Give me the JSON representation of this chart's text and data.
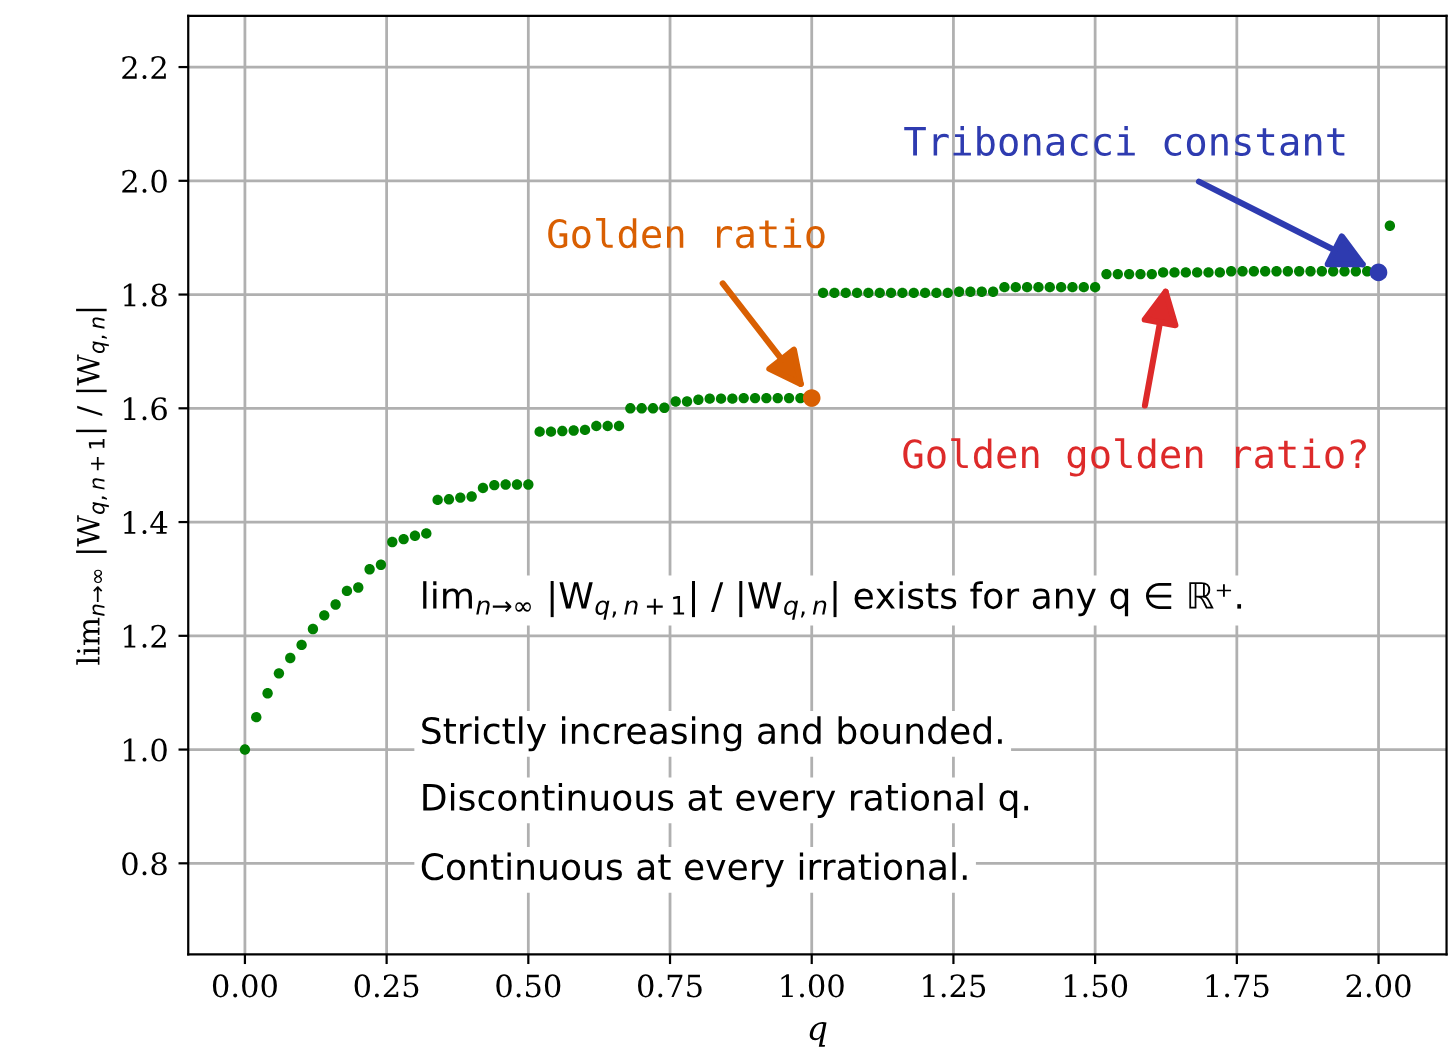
{
  "chart_data": {
    "type": "scatter",
    "xlabel": "q",
    "ylabel": "lim$_{n→∞}$ |W$_{q,n+1}$| / |W$_{q,n}$|",
    "series": [
      {
        "color": "#008000",
        "x": [
          0,
          0.02,
          0.04,
          0.06,
          0.08,
          0.1,
          0.12,
          0.14,
          0.16,
          0.18,
          0.2,
          0.22,
          0.24,
          0.26,
          0.28,
          0.3,
          0.32,
          0.34,
          0.36,
          0.38,
          0.4,
          0.42,
          0.44,
          0.46,
          0.48,
          0.5,
          0.52,
          0.54,
          0.56,
          0.58,
          0.6,
          0.62,
          0.64,
          0.66,
          0.68,
          0.7,
          0.72,
          0.74,
          0.76,
          0.78,
          0.8,
          0.82,
          0.84,
          0.86,
          0.88,
          0.9,
          0.92,
          0.94,
          0.96,
          0.98,
          1.02,
          1.04,
          1.06,
          1.08,
          1.1,
          1.12,
          1.14,
          1.16,
          1.18,
          1.2,
          1.22,
          1.24,
          1.26,
          1.28,
          1.3,
          1.32,
          1.34,
          1.36,
          1.38,
          1.4,
          1.42,
          1.44,
          1.46,
          1.48,
          1.5,
          1.52,
          1.54,
          1.56,
          1.58,
          1.6,
          1.62,
          1.64,
          1.66,
          1.68,
          1.7,
          1.72,
          1.74,
          1.76,
          1.78,
          1.8,
          1.82,
          1.84,
          1.86,
          1.88,
          1.9,
          1.92,
          1.94,
          1.96,
          1.98,
          2.02
        ],
        "values": [
          1.0,
          1.057,
          1.099,
          1.134,
          1.161,
          1.184,
          1.212,
          1.236,
          1.255,
          1.279,
          1.285,
          1.317,
          1.325,
          1.365,
          1.37,
          1.376,
          1.38,
          1.439,
          1.44,
          1.443,
          1.445,
          1.46,
          1.465,
          1.466,
          1.466,
          1.466,
          1.559,
          1.559,
          1.56,
          1.561,
          1.562,
          1.569,
          1.569,
          1.569,
          1.6,
          1.6,
          1.6,
          1.601,
          1.612,
          1.612,
          1.615,
          1.617,
          1.617,
          1.617,
          1.618,
          1.618,
          1.618,
          1.618,
          1.618,
          1.618,
          1.803,
          1.803,
          1.803,
          1.803,
          1.803,
          1.803,
          1.803,
          1.803,
          1.803,
          1.803,
          1.803,
          1.803,
          1.805,
          1.805,
          1.805,
          1.805,
          1.813,
          1.813,
          1.813,
          1.813,
          1.813,
          1.813,
          1.813,
          1.813,
          1.813,
          1.836,
          1.836,
          1.836,
          1.836,
          1.836,
          1.839,
          1.839,
          1.839,
          1.839,
          1.839,
          1.839,
          1.841,
          1.841,
          1.841,
          1.841,
          1.841,
          1.841,
          1.841,
          1.841,
          1.841,
          1.841,
          1.841,
          1.841,
          1.841,
          1.921
        ]
      },
      {
        "color": "#d95f02",
        "x": [
          1.0
        ],
        "values": [
          1.618
        ]
      },
      {
        "color": "#2e3bb0",
        "x": [
          2.0
        ],
        "values": [
          1.839
        ]
      }
    ],
    "xlim": [
      -0.1,
      2.12
    ],
    "ylim": [
      0.64,
      2.29
    ],
    "xticks": [
      {
        "value": 0,
        "label": "0.00"
      },
      {
        "value": 0.25,
        "label": "0.25"
      },
      {
        "value": 0.5,
        "label": "0.50"
      },
      {
        "value": 0.75,
        "label": "0.75"
      },
      {
        "value": 1,
        "label": "1.00"
      },
      {
        "value": 1.25,
        "label": "1.25"
      },
      {
        "value": 1.5,
        "label": "1.50"
      },
      {
        "value": 1.75,
        "label": "1.75"
      },
      {
        "value": 2,
        "label": "2.00"
      }
    ],
    "yticks": [
      {
        "value": 0.8,
        "label": "0.8"
      },
      {
        "value": 1.0,
        "label": "1.0"
      },
      {
        "value": 1.2,
        "label": "1.2"
      },
      {
        "value": 1.4,
        "label": "1.4"
      },
      {
        "value": 1.6,
        "label": "1.6"
      },
      {
        "value": 1.8,
        "label": "1.8"
      },
      {
        "value": 2.0,
        "label": "2.0"
      },
      {
        "value": 2.2,
        "label": "2.2"
      }
    ],
    "grid": true,
    "marker": "circle",
    "annotations": [
      {
        "text": "Golden ratio",
        "x": 1.0,
        "y": 1.618
      },
      {
        "text": "Tribonacci constant",
        "x": 2.0,
        "y": 1.839
      },
      {
        "text": "Golden golden ratio?",
        "x": 1.63,
        "y": 1.836
      },
      "lim$_{n→∞}$ |W$_{q,n+1}$| / |W$_{q,n}$| exists for any q ∈ ℝ⁺.",
      "Strictly increasing and bounded.",
      "Discontinuous at every rational q.",
      "Continuous at every irrational."
    ]
  }
}
